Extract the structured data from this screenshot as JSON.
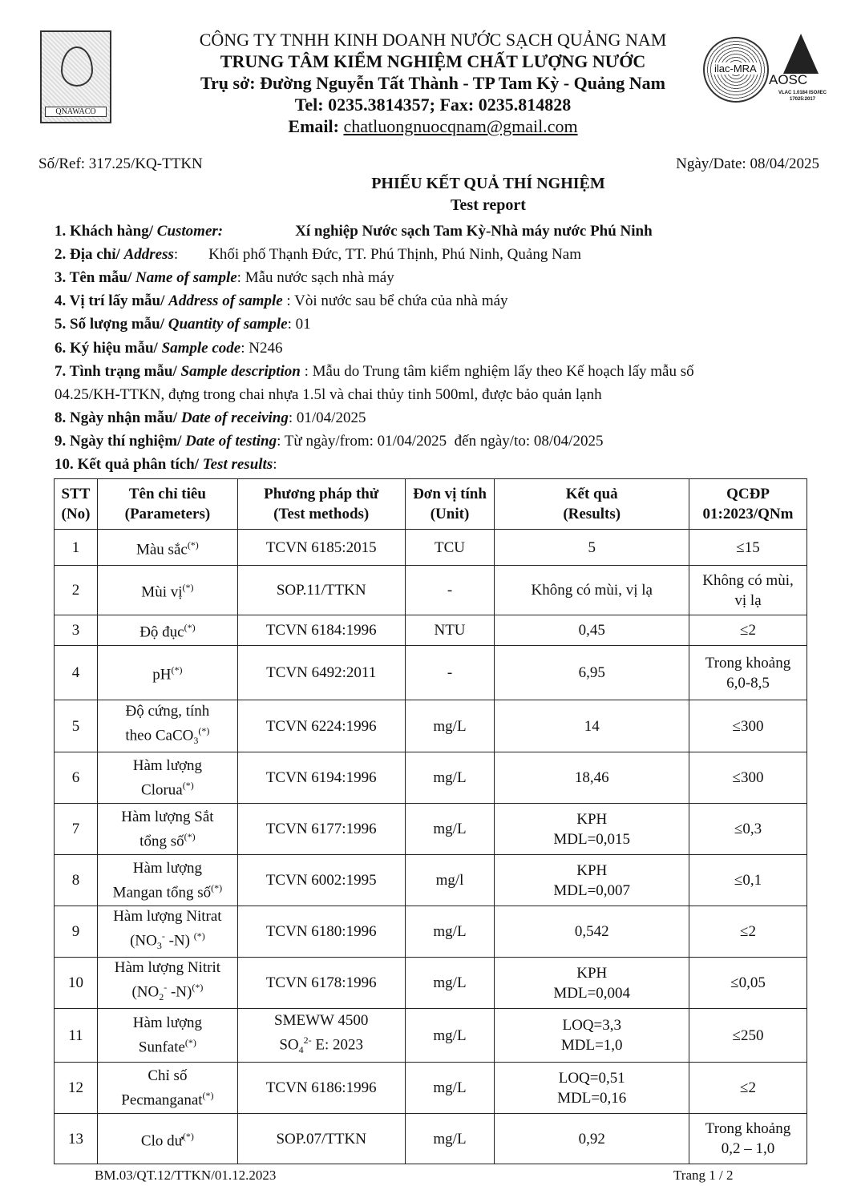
{
  "header": {
    "logo_left_text": "QNAWACO",
    "company": "CÔNG TY TNHH KINH DOANH NƯỚC SẠCH QUẢNG NAM",
    "center": "TRUNG TÂM KIỂM NGHIỆM CHẤT LƯỢNG NƯỚC",
    "address": "Trụ sở: Đường Nguyễn Tất Thành - TP Tam Kỳ -  Quảng Nam",
    "tel": "Tel: 0235.3814357; Fax: 0235.814828",
    "email_label": "Email: ",
    "email": "chatluongnuocqnam@gmail.com",
    "seal_text": "ilac-MRA",
    "aosc_text": "AOSC",
    "aosc_small": "VLAC 1.0184 ISO/IEC 17025:2017"
  },
  "ref": "Số/Ref: 317.25/KQ-TTKN",
  "date": "Ngày/Date: 08/04/2025",
  "title": "PHIẾU KẾT QUẢ THÍ NGHIỆM",
  "subtitle": "Test report",
  "info": [
    {
      "label": "1. Khách hàng/ ",
      "label_en": "Customer:",
      "value": "Xí nghiệp Nước sạch Tam Kỳ-Nhà máy nước Phú Ninh"
    },
    {
      "label": "2. Địa chỉ/ ",
      "label_en": "Address",
      "value": ":        Khối phố Thạnh Đức, TT. Phú Thịnh, Phú Ninh, Quảng Nam"
    },
    {
      "label": "3. Tên mẫu/ ",
      "label_en": "Name of sample",
      "value": ": Mẫu nước sạch nhà máy"
    },
    {
      "label": "4. Vị trí lấy mẫu/ ",
      "label_en": "Address of sample",
      "value": " : Vòi nước sau bể chứa của nhà máy"
    },
    {
      "label": "5. Số lượng mẫu/ ",
      "label_en": "Quantity of sample",
      "value": ": 01"
    },
    {
      "label": "6. Ký hiệu mẫu/ ",
      "label_en": "Sample code",
      "value": ": N246"
    },
    {
      "label": "7. Tình trạng mẫu/ ",
      "label_en": "Sample description",
      "value": " : Mẫu do Trung tâm kiểm nghiệm lấy theo Kế hoạch lấy mẫu số",
      "value2": "04.25/KH-TTKN, đựng trong chai nhựa 1.5l và chai thủy tinh 500ml, được bảo quản lạnh"
    },
    {
      "label": "8. Ngày nhận mẫu/ ",
      "label_en": "Date of receiving",
      "value": ": 01/04/2025"
    },
    {
      "label": "9. Ngày thí nghiệm/ ",
      "label_en": "Date of testing",
      "value": ": Từ ngày/from: 01/04/2025  đến ngày/to: 08/04/2025"
    },
    {
      "label": "10. Kết quả phân tích/ ",
      "label_en": "Test results",
      "value": ":"
    }
  ],
  "table": {
    "headers": [
      "STT (No)",
      "Tên chỉ tiêu (Parameters)",
      "Phương pháp thử (Test methods)",
      "Đơn vị tính (Unit)",
      "Kết quả (Results)",
      "QCĐP 01:2023/QNm"
    ],
    "rows": [
      {
        "no": "1",
        "param": [
          {
            "t": "Màu sắc"
          },
          {
            "sup": "(*)"
          }
        ],
        "method": [
          {
            "t": "TCVN 6185:2015"
          }
        ],
        "unit": "TCU",
        "result": [
          "5"
        ],
        "limit": [
          "≤15"
        ]
      },
      {
        "no": "2",
        "param": [
          {
            "t": "Mùi vị"
          },
          {
            "sup": "(*)"
          }
        ],
        "method": [
          {
            "t": "SOP.11/TTKN"
          }
        ],
        "unit": "-",
        "result": [
          "Không có mùi, vị lạ"
        ],
        "limit": [
          "Không có mùi,",
          "vị lạ"
        ]
      },
      {
        "no": "3",
        "param": [
          {
            "t": "Độ đục"
          },
          {
            "sup": "(*)"
          }
        ],
        "method": [
          {
            "t": "TCVN 6184:1996"
          }
        ],
        "unit": "NTU",
        "result": [
          "0,45"
        ],
        "limit": [
          "≤2"
        ]
      },
      {
        "no": "4",
        "param": [
          {
            "t": "pH"
          },
          {
            "sup": "(*)"
          }
        ],
        "method": [
          {
            "t": "TCVN 6492:2011"
          }
        ],
        "unit": "-",
        "result": [
          "6,95"
        ],
        "limit": [
          "Trong khoảng",
          "6,0-8,5"
        ]
      },
      {
        "no": "5",
        "param": [
          {
            "t": "Độ cứng, tính"
          },
          {
            "br": 1
          },
          {
            "t": "theo CaCO"
          },
          {
            "sub": "3"
          },
          {
            "sup": "(*)"
          }
        ],
        "method": [
          {
            "t": "TCVN 6224:1996"
          }
        ],
        "unit": "mg/L",
        "result": [
          "14"
        ],
        "limit": [
          "≤300"
        ]
      },
      {
        "no": "6",
        "param": [
          {
            "t": "Hàm lượng"
          },
          {
            "br": 1
          },
          {
            "t": "Clorua"
          },
          {
            "sup": "(*)"
          }
        ],
        "method": [
          {
            "t": "TCVN 6194:1996"
          }
        ],
        "unit": "mg/L",
        "result": [
          "18,46"
        ],
        "limit": [
          "≤300"
        ]
      },
      {
        "no": "7",
        "param": [
          {
            "t": "Hàm lượng Sắt"
          },
          {
            "br": 1
          },
          {
            "t": "tổng số"
          },
          {
            "sup": "(*)"
          }
        ],
        "method": [
          {
            "t": "TCVN 6177:1996"
          }
        ],
        "unit": "mg/L",
        "result": [
          "KPH",
          "MDL=0,015"
        ],
        "limit": [
          "≤0,3"
        ]
      },
      {
        "no": "8",
        "param": [
          {
            "t": "Hàm lượng"
          },
          {
            "br": 1
          },
          {
            "t": "Mangan tổng số"
          },
          {
            "sup": "(*)"
          }
        ],
        "method": [
          {
            "t": "TCVN 6002:1995"
          }
        ],
        "unit": "mg/l",
        "result": [
          "KPH",
          "MDL=0,007"
        ],
        "limit": [
          "≤0,1"
        ]
      },
      {
        "no": "9",
        "param": [
          {
            "t": "Hàm lượng Nitrat"
          },
          {
            "br": 1
          },
          {
            "t": "(NO"
          },
          {
            "sub": "3"
          },
          {
            "sup": "-"
          },
          {
            "t": " -N) "
          },
          {
            "sup": "(*)"
          }
        ],
        "method": [
          {
            "t": "TCVN 6180:1996"
          }
        ],
        "unit": "mg/L",
        "result": [
          "0,542"
        ],
        "limit": [
          "≤2"
        ]
      },
      {
        "no": "10",
        "param": [
          {
            "t": "Hàm lượng Nitrit"
          },
          {
            "br": 1
          },
          {
            "t": "(NO"
          },
          {
            "sub": "2"
          },
          {
            "sup": "-"
          },
          {
            "t": " -N)"
          },
          {
            "sup": "(*)"
          }
        ],
        "method": [
          {
            "t": "TCVN 6178:1996"
          }
        ],
        "unit": "mg/L",
        "result": [
          "KPH",
          "MDL=0,004"
        ],
        "limit": [
          "≤0,05"
        ]
      },
      {
        "no": "11",
        "param": [
          {
            "t": "Hàm lượng"
          },
          {
            "br": 1
          },
          {
            "t": "Sunfate"
          },
          {
            "sup": "(*)"
          }
        ],
        "method": [
          {
            "t": "SMEWW 4500"
          },
          {
            "br": 1
          },
          {
            "t": "SO"
          },
          {
            "sub": "4"
          },
          {
            "sup": "2-"
          },
          {
            "t": " E: 2023"
          }
        ],
        "unit": "mg/L",
        "result": [
          "LOQ=3,3",
          "MDL=1,0"
        ],
        "limit": [
          "≤250"
        ]
      },
      {
        "no": "12",
        "param": [
          {
            "t": "Chỉ số"
          },
          {
            "br": 1
          },
          {
            "t": "Pecmanganat"
          },
          {
            "sup": "(*)"
          }
        ],
        "method": [
          {
            "t": "TCVN 6186:1996"
          }
        ],
        "unit": "mg/L",
        "result": [
          "LOQ=0,51",
          "MDL=0,16"
        ],
        "limit": [
          "≤2"
        ]
      },
      {
        "no": "13",
        "param": [
          {
            "t": "Clo dư"
          },
          {
            "sup": "(*)"
          }
        ],
        "method": [
          {
            "t": "SOP.07/TTKN"
          }
        ],
        "unit": "mg/L",
        "result": [
          "0,92"
        ],
        "limit": [
          "Trong khoảng",
          "0,2 – 1,0"
        ]
      }
    ]
  },
  "footer": {
    "form_code": "BM.03/QT.12/TTKN/01.12.2023",
    "page": "Trang 1 / 2"
  }
}
